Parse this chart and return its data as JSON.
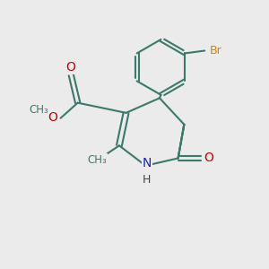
{
  "background_color": "#ebebeb",
  "bond_color": "#3a7a6a",
  "bond_width": 1.5,
  "O_color": "#cc0000",
  "N_color": "#1a1acc",
  "Br_color": "#cc8800",
  "figsize": [
    3.0,
    3.0
  ],
  "dpi": 100,
  "xlim": [
    0,
    10
  ],
  "ylim": [
    0,
    10
  ]
}
